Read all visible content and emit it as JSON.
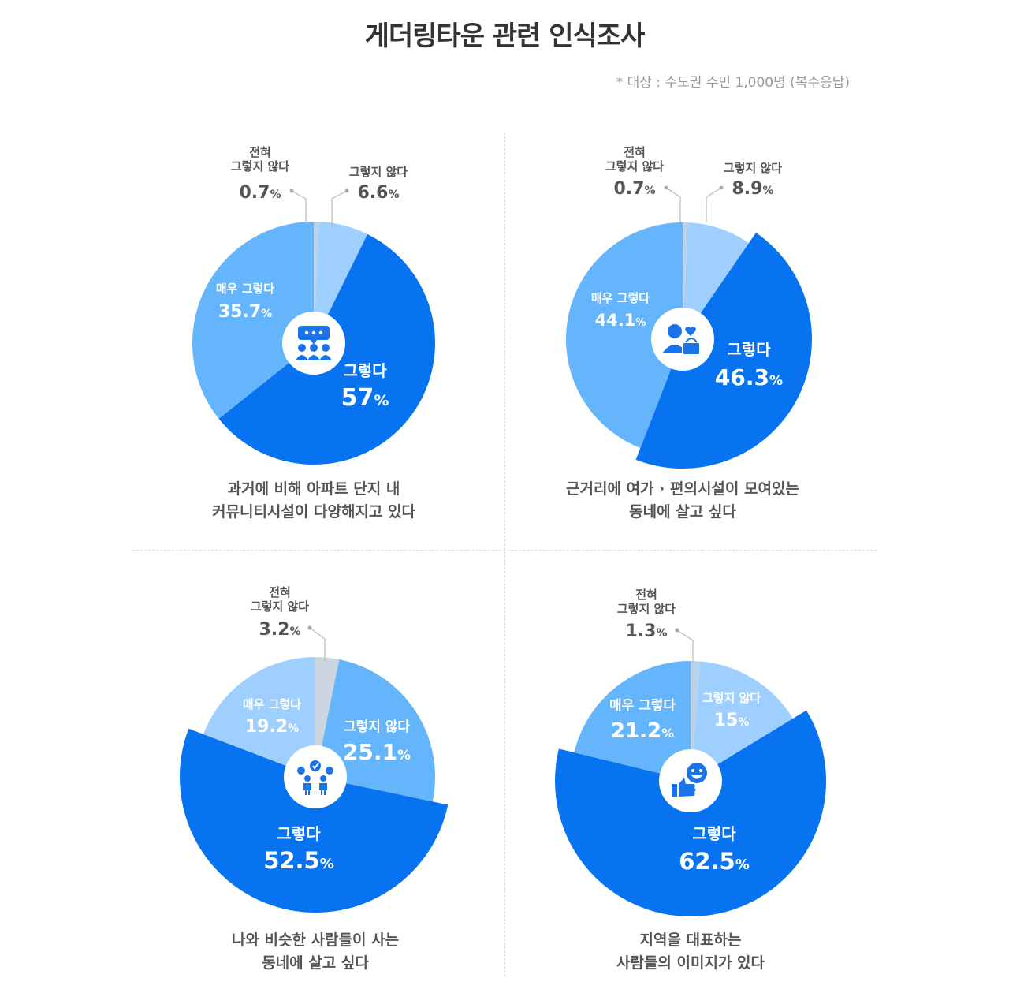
{
  "title": "게더링타운 관련 인식조사",
  "note": "* 대상 : 수도권 주민 1,000명 (복수응답)",
  "chart_data": [
    {
      "type": "pie",
      "caption": [
        "과거에 비해 아파트 단지 내",
        "커뮤니티시설이 다양해지고 있다"
      ],
      "icon": "community-people-chat-icon",
      "slices": [
        {
          "label": [
            "전혀",
            "그렇지 않다"
          ],
          "value": 0.7,
          "color": "#b9d3ec"
        },
        {
          "label": [
            "그렇지 않다"
          ],
          "value": 6.6,
          "color": "#9fcfff"
        },
        {
          "label": [
            "그렇다"
          ],
          "value": 57,
          "color": "#0873f0"
        },
        {
          "label": [
            "매우 그렇다"
          ],
          "value": 35.7,
          "color": "#64b5fb"
        }
      ],
      "unit": "%"
    },
    {
      "type": "pie",
      "caption": [
        "근거리에 여가 · 편의시설이 모여있는",
        "동네에 살고 싶다"
      ],
      "icon": "person-shopping-basket-icon",
      "slices": [
        {
          "label": [
            "전혀",
            "그렇지 않다"
          ],
          "value": 0.7,
          "color": "#b9d3ec"
        },
        {
          "label": [
            "그렇지 않다"
          ],
          "value": 8.9,
          "color": "#9fcfff"
        },
        {
          "label": [
            "그렇다"
          ],
          "value": 46.3,
          "color": "#0873f0"
        },
        {
          "label": [
            "매우 그렇다"
          ],
          "value": 44.1,
          "color": "#64b5fb"
        }
      ],
      "unit": "%"
    },
    {
      "type": "pie",
      "caption": [
        "나와 비슷한 사람들이 사는",
        "동네에 살고 싶다"
      ],
      "icon": "like-minded-people-icon",
      "slices": [
        {
          "label": [
            "전혀",
            "그렇지 않다"
          ],
          "value": 3.2,
          "color": "#ccd6e0"
        },
        {
          "label": [
            "그렇지 않다"
          ],
          "value": 25.1,
          "color": "#64b5fb"
        },
        {
          "label": [
            "그렇다"
          ],
          "value": 52.5,
          "color": "#0873f0"
        },
        {
          "label": [
            "매우 그렇다"
          ],
          "value": 19.2,
          "color": "#9fcfff"
        }
      ],
      "unit": "%"
    },
    {
      "type": "pie",
      "caption": [
        "지역을 대표하는",
        "사람들의 이미지가 있다"
      ],
      "icon": "smiley-thumbs-up-icon",
      "slices": [
        {
          "label": [
            "전혀",
            "그렇지 않다"
          ],
          "value": 1.3,
          "color": "#b9d3ec"
        },
        {
          "label": [
            "그렇지 않다"
          ],
          "value": 15,
          "color": "#9fcfff"
        },
        {
          "label": [
            "그렇다"
          ],
          "value": 62.5,
          "color": "#0873f0"
        },
        {
          "label": [
            "매우 그렇다"
          ],
          "value": 21.2,
          "color": "#64b5fb"
        }
      ],
      "unit": "%"
    }
  ]
}
